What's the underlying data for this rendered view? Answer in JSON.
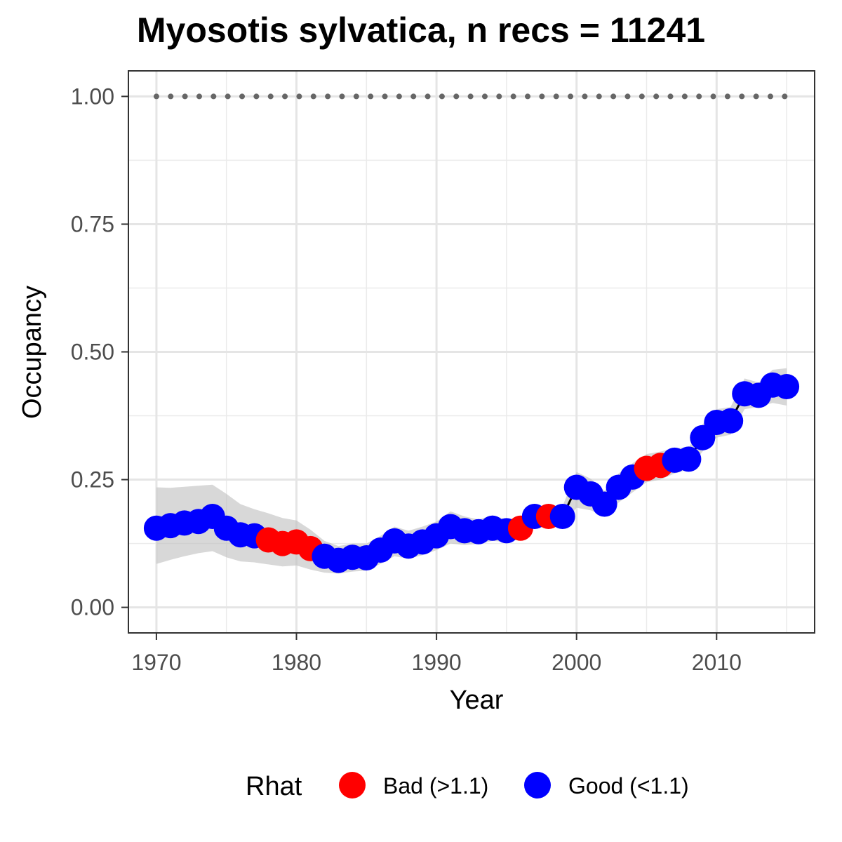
{
  "chart_data": {
    "type": "line",
    "title": "Myosotis sylvatica, n recs = 11241",
    "xlabel": "Year",
    "ylabel": "Occupancy",
    "xlim": [
      1968,
      2017
    ],
    "ylim": [
      -0.05,
      1.05
    ],
    "x_ticks": [
      "1970",
      "1980",
      "1990",
      "2000",
      "2010"
    ],
    "y_ticks": [
      "0.00",
      "0.25",
      "0.50",
      "0.75",
      "1.00"
    ],
    "grid": true,
    "legend": {
      "title": "Rhat",
      "position": "bottom",
      "entries": [
        {
          "label": "Bad (>1.1)",
          "color": "#ff0000"
        },
        {
          "label": "Good (<1.1)",
          "color": "#0000ff"
        }
      ]
    },
    "colors": {
      "bad": "#ff0000",
      "good": "#0000ff",
      "ci": "#bebebe",
      "line": "#000000",
      "reference": "#666666"
    },
    "reference_line": {
      "y": 1.0,
      "style": "dotted"
    },
    "x": [
      1970,
      1971,
      1972,
      1973,
      1974,
      1975,
      1976,
      1977,
      1978,
      1979,
      1980,
      1981,
      1982,
      1983,
      1984,
      1985,
      1986,
      1987,
      1988,
      1989,
      1990,
      1991,
      1992,
      1993,
      1994,
      1995,
      1996,
      1997,
      1998,
      1999,
      2000,
      2001,
      2002,
      2003,
      2004,
      2005,
      2006,
      2007,
      2008,
      2009,
      2010,
      2011,
      2012,
      2013,
      2014,
      2015
    ],
    "occupancy": [
      0.155,
      0.16,
      0.165,
      0.168,
      0.178,
      0.155,
      0.142,
      0.14,
      0.132,
      0.125,
      0.128,
      0.115,
      0.1,
      0.092,
      0.098,
      0.097,
      0.112,
      0.13,
      0.12,
      0.128,
      0.14,
      0.158,
      0.15,
      0.148,
      0.155,
      0.15,
      0.155,
      0.178,
      0.178,
      0.178,
      0.235,
      0.222,
      0.202,
      0.235,
      0.255,
      0.272,
      0.278,
      0.288,
      0.29,
      0.332,
      0.362,
      0.365,
      0.418,
      0.415,
      0.435,
      0.432
    ],
    "lower": [
      0.085,
      0.093,
      0.1,
      0.106,
      0.11,
      0.098,
      0.09,
      0.088,
      0.084,
      0.08,
      0.082,
      0.074,
      0.068,
      0.066,
      0.07,
      0.072,
      0.085,
      0.1,
      0.095,
      0.102,
      0.112,
      0.125,
      0.122,
      0.124,
      0.13,
      0.128,
      0.134,
      0.155,
      0.158,
      0.16,
      0.195,
      0.19,
      0.18,
      0.205,
      0.225,
      0.245,
      0.25,
      0.262,
      0.27,
      0.305,
      0.332,
      0.338,
      0.388,
      0.392,
      0.4,
      0.395
    ],
    "upper": [
      0.235,
      0.234,
      0.236,
      0.238,
      0.24,
      0.222,
      0.202,
      0.192,
      0.184,
      0.175,
      0.17,
      0.152,
      0.13,
      0.12,
      0.125,
      0.125,
      0.14,
      0.158,
      0.15,
      0.158,
      0.168,
      0.188,
      0.178,
      0.172,
      0.18,
      0.172,
      0.175,
      0.198,
      0.198,
      0.198,
      0.265,
      0.252,
      0.228,
      0.262,
      0.282,
      0.3,
      0.305,
      0.312,
      0.312,
      0.358,
      0.388,
      0.392,
      0.448,
      0.44,
      0.465,
      0.468
    ],
    "rhat": [
      "good",
      "good",
      "good",
      "good",
      "good",
      "good",
      "good",
      "good",
      "bad",
      "bad",
      "bad",
      "bad",
      "good",
      "good",
      "good",
      "good",
      "good",
      "good",
      "good",
      "good",
      "good",
      "good",
      "good",
      "good",
      "good",
      "good",
      "bad",
      "good",
      "bad",
      "good",
      "good",
      "good",
      "good",
      "good",
      "good",
      "bad",
      "bad",
      "good",
      "good",
      "good",
      "good",
      "good",
      "good",
      "good",
      "good",
      "good"
    ]
  }
}
